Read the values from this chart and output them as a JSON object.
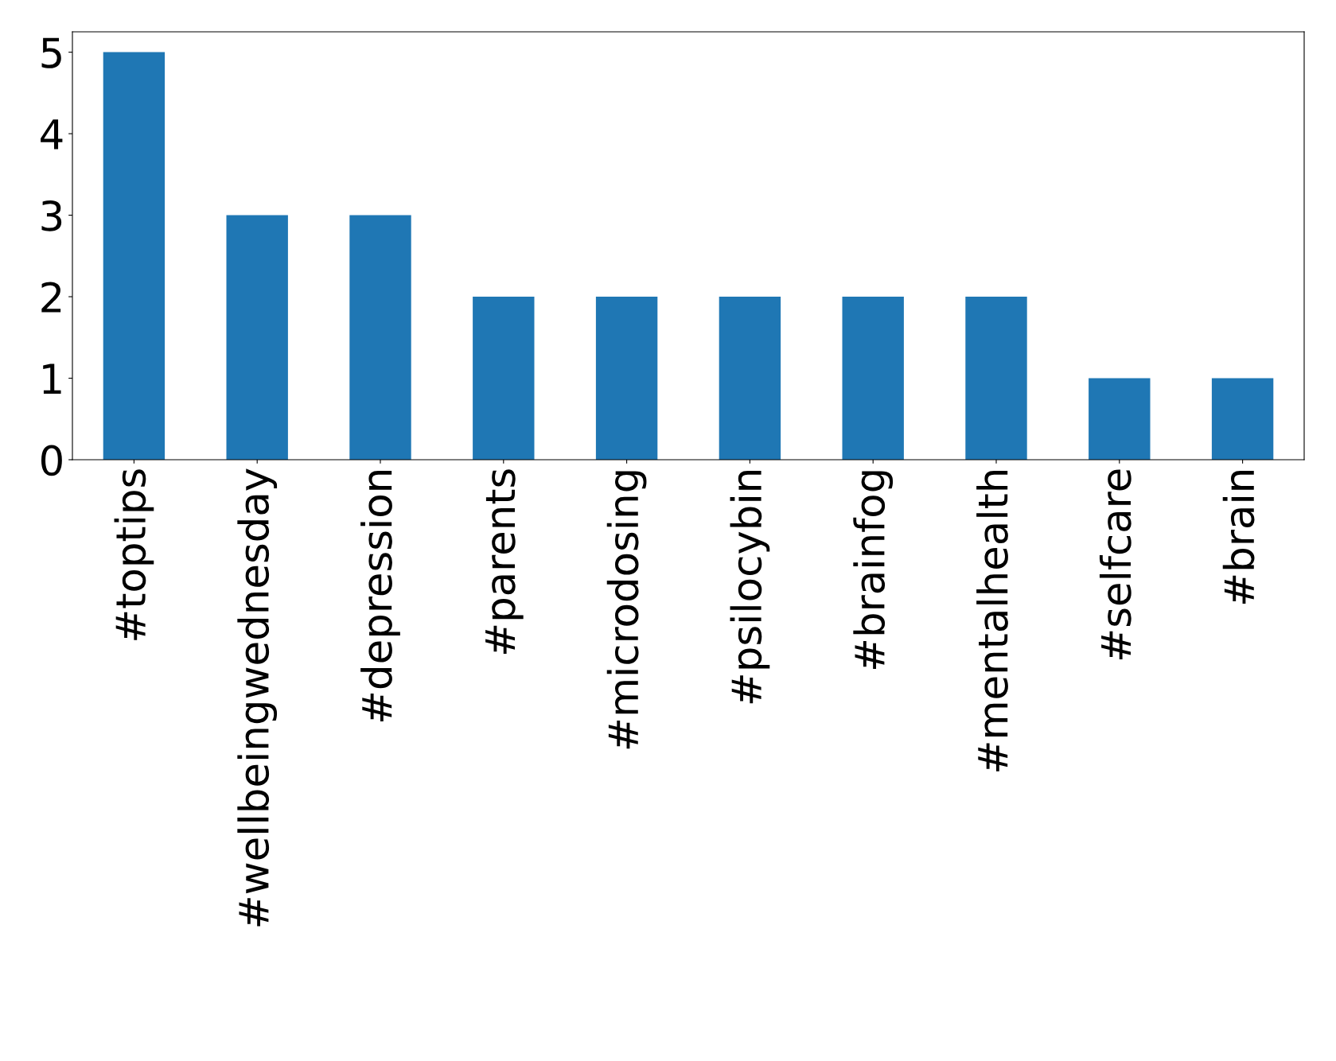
{
  "chart_data": {
    "type": "bar",
    "categories": [
      "#toptips",
      "#wellbeingwednesday",
      "#depression",
      "#parents",
      "#microdosing",
      "#psilocybin",
      "#brainfog",
      "#mentalhealth",
      "#selfcare",
      "#brain"
    ],
    "values": [
      5,
      3,
      3,
      2,
      2,
      2,
      2,
      2,
      1,
      1
    ],
    "color": "#1f77b4",
    "ylim": [
      0,
      5.25
    ],
    "yticks": [
      0,
      1,
      2,
      3,
      4,
      5
    ],
    "grid": false,
    "legend": false
  }
}
